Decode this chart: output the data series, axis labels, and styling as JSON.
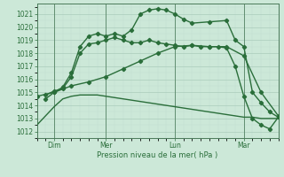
{
  "xlabel": "Pression niveau de la mer( hPa )",
  "bg_color": "#cce8d8",
  "grid_color_major": "#aaccbb",
  "grid_color_minor": "#c0ddd0",
  "line_color": "#2a6e3a",
  "xlim": [
    0,
    14.0
  ],
  "ylim": [
    1011.5,
    1021.8
  ],
  "yticks": [
    1012,
    1013,
    1014,
    1015,
    1016,
    1017,
    1018,
    1019,
    1020,
    1021
  ],
  "xtick_positions": [
    1.0,
    4.0,
    8.0,
    12.0
  ],
  "xtick_labels": [
    "Dim",
    "Mer",
    "Lun",
    "Mar"
  ],
  "vlines": [
    1.0,
    4.0,
    8.0,
    12.0
  ],
  "line_flat": {
    "x": [
      0.0,
      0.5,
      1.0,
      1.5,
      2.0,
      2.5,
      3.0,
      3.5,
      4.0,
      4.5,
      5.0,
      5.5,
      6.0,
      6.5,
      7.0,
      7.5,
      8.0,
      8.5,
      9.0,
      9.5,
      10.0,
      10.5,
      11.0,
      11.5,
      12.0,
      12.5,
      13.0,
      13.5,
      14.0
    ],
    "y": [
      1012.5,
      1013.2,
      1013.9,
      1014.5,
      1014.7,
      1014.8,
      1014.8,
      1014.8,
      1014.7,
      1014.6,
      1014.5,
      1014.4,
      1014.3,
      1014.2,
      1014.1,
      1014.0,
      1013.9,
      1013.8,
      1013.7,
      1013.6,
      1013.5,
      1013.4,
      1013.3,
      1013.2,
      1013.1,
      1013.1,
      1013.0,
      1013.0,
      1013.0
    ]
  },
  "line_slow": {
    "x": [
      0.0,
      1.0,
      2.0,
      3.0,
      4.0,
      5.0,
      6.0,
      7.0,
      8.0,
      9.0,
      10.0,
      11.0,
      12.0,
      13.0,
      14.0
    ],
    "y": [
      1014.7,
      1015.0,
      1015.5,
      1015.8,
      1016.2,
      1016.8,
      1017.4,
      1018.0,
      1018.5,
      1018.6,
      1018.5,
      1018.5,
      1017.8,
      1015.0,
      1013.2
    ]
  },
  "line_mid": {
    "x": [
      0.5,
      1.0,
      1.5,
      2.0,
      2.5,
      3.0,
      3.5,
      4.0,
      4.5,
      5.0,
      5.5,
      6.0,
      6.5,
      7.0,
      7.5,
      8.0,
      8.5,
      9.0,
      9.5,
      10.0,
      10.5,
      11.0,
      11.5,
      12.0,
      12.5,
      13.0,
      13.5,
      14.0
    ],
    "y": [
      1014.8,
      1015.1,
      1015.3,
      1016.2,
      1018.0,
      1018.7,
      1018.8,
      1019.0,
      1019.2,
      1019.0,
      1018.8,
      1018.8,
      1019.0,
      1018.8,
      1018.7,
      1018.6,
      1018.5,
      1018.6,
      1018.5,
      1018.5,
      1018.5,
      1018.4,
      1017.0,
      1014.7,
      1013.0,
      1012.5,
      1012.2,
      1013.1
    ]
  },
  "line_top": {
    "x": [
      0.5,
      1.0,
      1.5,
      2.0,
      2.5,
      3.0,
      3.5,
      4.0,
      4.5,
      5.0,
      5.5,
      6.0,
      6.5,
      7.0,
      7.5,
      8.0,
      8.5,
      9.0,
      10.0,
      11.0,
      11.5,
      12.0,
      12.5,
      13.0,
      13.5,
      14.0
    ],
    "y": [
      1014.5,
      1015.0,
      1015.4,
      1016.5,
      1018.5,
      1019.3,
      1019.5,
      1019.3,
      1019.5,
      1019.3,
      1019.8,
      1021.0,
      1021.3,
      1021.4,
      1021.3,
      1021.0,
      1020.6,
      1020.3,
      1020.4,
      1020.5,
      1019.0,
      1018.5,
      1015.0,
      1014.2,
      1013.5,
      1013.1
    ]
  }
}
